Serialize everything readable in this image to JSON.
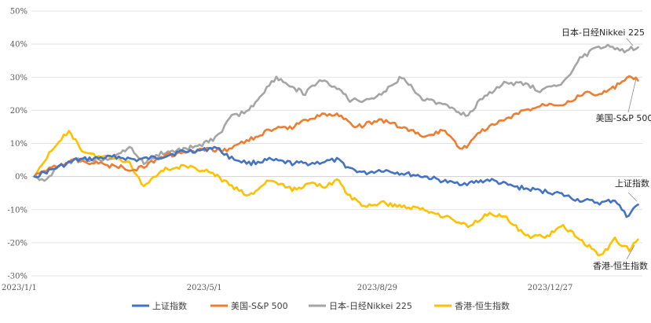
{
  "chart_data": {
    "type": "line",
    "title": "",
    "xlabel": "",
    "ylabel": "",
    "ylim": [
      -30,
      50
    ],
    "yticks": [
      -30,
      -20,
      -10,
      0,
      10,
      20,
      30,
      40,
      50
    ],
    "ytick_labels": [
      "-30%",
      "-20%",
      "-10%",
      "0%",
      "10%",
      "20%",
      "30%",
      "40%",
      "50%"
    ],
    "xlim": [
      "2023-01-01",
      "2024-02-29"
    ],
    "xticks": [
      "2023-01-01",
      "2023-05-01",
      "2023-08-29",
      "2023-12-27"
    ],
    "xtick_labels": [
      "2023/1/1",
      "2023/5/1",
      "2023/8/29",
      "2023/12/27"
    ],
    "grid": "horizontal",
    "legend_position": "bottom",
    "series": [
      {
        "name": "上证指数",
        "color": "#4472C4",
        "annotation": "上证指数",
        "points": [
          [
            "2023-01-03",
            0
          ],
          [
            "2023-01-15",
            2
          ],
          [
            "2023-02-01",
            5
          ],
          [
            "2023-02-15",
            5.5
          ],
          [
            "2023-03-01",
            6
          ],
          [
            "2023-03-15",
            5
          ],
          [
            "2023-04-01",
            6
          ],
          [
            "2023-04-15",
            7.5
          ],
          [
            "2023-05-01",
            8
          ],
          [
            "2023-05-08",
            9
          ],
          [
            "2023-05-20",
            5.5
          ],
          [
            "2023-06-01",
            4
          ],
          [
            "2023-06-15",
            5
          ],
          [
            "2023-07-01",
            4
          ],
          [
            "2023-07-15",
            4
          ],
          [
            "2023-08-01",
            5
          ],
          [
            "2023-08-10",
            2.5
          ],
          [
            "2023-08-20",
            1
          ],
          [
            "2023-09-01",
            2
          ],
          [
            "2023-09-15",
            1
          ],
          [
            "2023-10-01",
            0
          ],
          [
            "2023-10-20",
            -2
          ],
          [
            "2023-11-01",
            -2
          ],
          [
            "2023-11-15",
            -1
          ],
          [
            "2023-12-01",
            -3
          ],
          [
            "2023-12-15",
            -4
          ],
          [
            "2024-01-01",
            -5
          ],
          [
            "2024-01-15",
            -7
          ],
          [
            "2024-02-01",
            -8
          ],
          [
            "2024-02-10",
            -7
          ],
          [
            "2024-02-18",
            -12
          ],
          [
            "2024-02-26",
            -8.5
          ]
        ]
      },
      {
        "name": "美国-S&P 500",
        "color": "#ED7D31",
        "annotation": "美国-S&P 500",
        "points": [
          [
            "2023-01-03",
            0
          ],
          [
            "2023-01-15",
            3
          ],
          [
            "2023-02-01",
            5
          ],
          [
            "2023-02-15",
            4
          ],
          [
            "2023-03-01",
            3
          ],
          [
            "2023-03-15",
            2
          ],
          [
            "2023-04-01",
            6
          ],
          [
            "2023-04-15",
            7
          ],
          [
            "2023-05-01",
            8
          ],
          [
            "2023-05-15",
            8
          ],
          [
            "2023-06-01",
            11
          ],
          [
            "2023-06-15",
            14
          ],
          [
            "2023-07-01",
            15
          ],
          [
            "2023-07-15",
            18
          ],
          [
            "2023-08-01",
            19
          ],
          [
            "2023-08-15",
            15
          ],
          [
            "2023-09-01",
            17
          ],
          [
            "2023-09-15",
            15
          ],
          [
            "2023-10-01",
            12
          ],
          [
            "2023-10-15",
            14
          ],
          [
            "2023-10-27",
            8
          ],
          [
            "2023-11-10",
            14
          ],
          [
            "2023-11-25",
            17
          ],
          [
            "2023-12-10",
            20
          ],
          [
            "2023-12-25",
            22
          ],
          [
            "2024-01-05",
            22
          ],
          [
            "2024-01-20",
            25
          ],
          [
            "2024-02-01",
            25
          ],
          [
            "2024-02-10",
            27
          ],
          [
            "2024-02-20",
            30
          ],
          [
            "2024-02-26",
            29
          ]
        ]
      },
      {
        "name": "日本-日经Nikkei 225",
        "color": "#A5A5A5",
        "annotation": "日本-日经Nikkei 225",
        "points": [
          [
            "2023-01-03",
            0
          ],
          [
            "2023-01-10",
            -1
          ],
          [
            "2023-01-20",
            3
          ],
          [
            "2023-02-01",
            5
          ],
          [
            "2023-02-15",
            5
          ],
          [
            "2023-03-01",
            6
          ],
          [
            "2023-03-10",
            9
          ],
          [
            "2023-03-20",
            4
          ],
          [
            "2023-04-01",
            7
          ],
          [
            "2023-04-15",
            8
          ],
          [
            "2023-05-01",
            10
          ],
          [
            "2023-05-10",
            12
          ],
          [
            "2023-05-20",
            18
          ],
          [
            "2023-06-01",
            20
          ],
          [
            "2023-06-10",
            25
          ],
          [
            "2023-06-20",
            30
          ],
          [
            "2023-07-01",
            27
          ],
          [
            "2023-07-10",
            25
          ],
          [
            "2023-07-20",
            29
          ],
          [
            "2023-08-01",
            27
          ],
          [
            "2023-08-10",
            23
          ],
          [
            "2023-08-20",
            23
          ],
          [
            "2023-09-01",
            25
          ],
          [
            "2023-09-15",
            30
          ],
          [
            "2023-10-01",
            23
          ],
          [
            "2023-10-15",
            22
          ],
          [
            "2023-10-31",
            18
          ],
          [
            "2023-11-10",
            24
          ],
          [
            "2023-11-25",
            28
          ],
          [
            "2023-12-10",
            28
          ],
          [
            "2023-12-20",
            26
          ],
          [
            "2024-01-05",
            28
          ],
          [
            "2024-01-15",
            35
          ],
          [
            "2024-01-25",
            38
          ],
          [
            "2024-02-05",
            40
          ],
          [
            "2024-02-15",
            38
          ],
          [
            "2024-02-26",
            39
          ]
        ]
      },
      {
        "name": "香港-恒生指数",
        "color": "#FFC000",
        "annotation": "香港-恒生指数",
        "points": [
          [
            "2023-01-03",
            0
          ],
          [
            "2023-01-10",
            5
          ],
          [
            "2023-01-20",
            10
          ],
          [
            "2023-01-27",
            14
          ],
          [
            "2023-02-05",
            8
          ],
          [
            "2023-02-15",
            6
          ],
          [
            "2023-03-01",
            6
          ],
          [
            "2023-03-10",
            4
          ],
          [
            "2023-03-20",
            -3
          ],
          [
            "2023-04-01",
            2
          ],
          [
            "2023-04-15",
            3
          ],
          [
            "2023-05-01",
            2
          ],
          [
            "2023-05-10",
            0
          ],
          [
            "2023-05-20",
            -3
          ],
          [
            "2023-06-01",
            -6
          ],
          [
            "2023-06-15",
            -1
          ],
          [
            "2023-07-01",
            -4
          ],
          [
            "2023-07-15",
            -2
          ],
          [
            "2023-07-25",
            -3
          ],
          [
            "2023-08-01",
            -1
          ],
          [
            "2023-08-10",
            -6
          ],
          [
            "2023-08-20",
            -9
          ],
          [
            "2023-09-01",
            -8
          ],
          [
            "2023-09-15",
            -9
          ],
          [
            "2023-10-01",
            -10
          ],
          [
            "2023-10-15",
            -12
          ],
          [
            "2023-10-31",
            -15
          ],
          [
            "2023-11-15",
            -11
          ],
          [
            "2023-11-25",
            -12
          ],
          [
            "2023-12-10",
            -18
          ],
          [
            "2023-12-25",
            -18
          ],
          [
            "2024-01-05",
            -15
          ],
          [
            "2024-01-20",
            -20
          ],
          [
            "2024-01-31",
            -24
          ],
          [
            "2024-02-10",
            -19
          ],
          [
            "2024-02-20",
            -22
          ],
          [
            "2024-02-26",
            -19
          ]
        ]
      }
    ]
  }
}
